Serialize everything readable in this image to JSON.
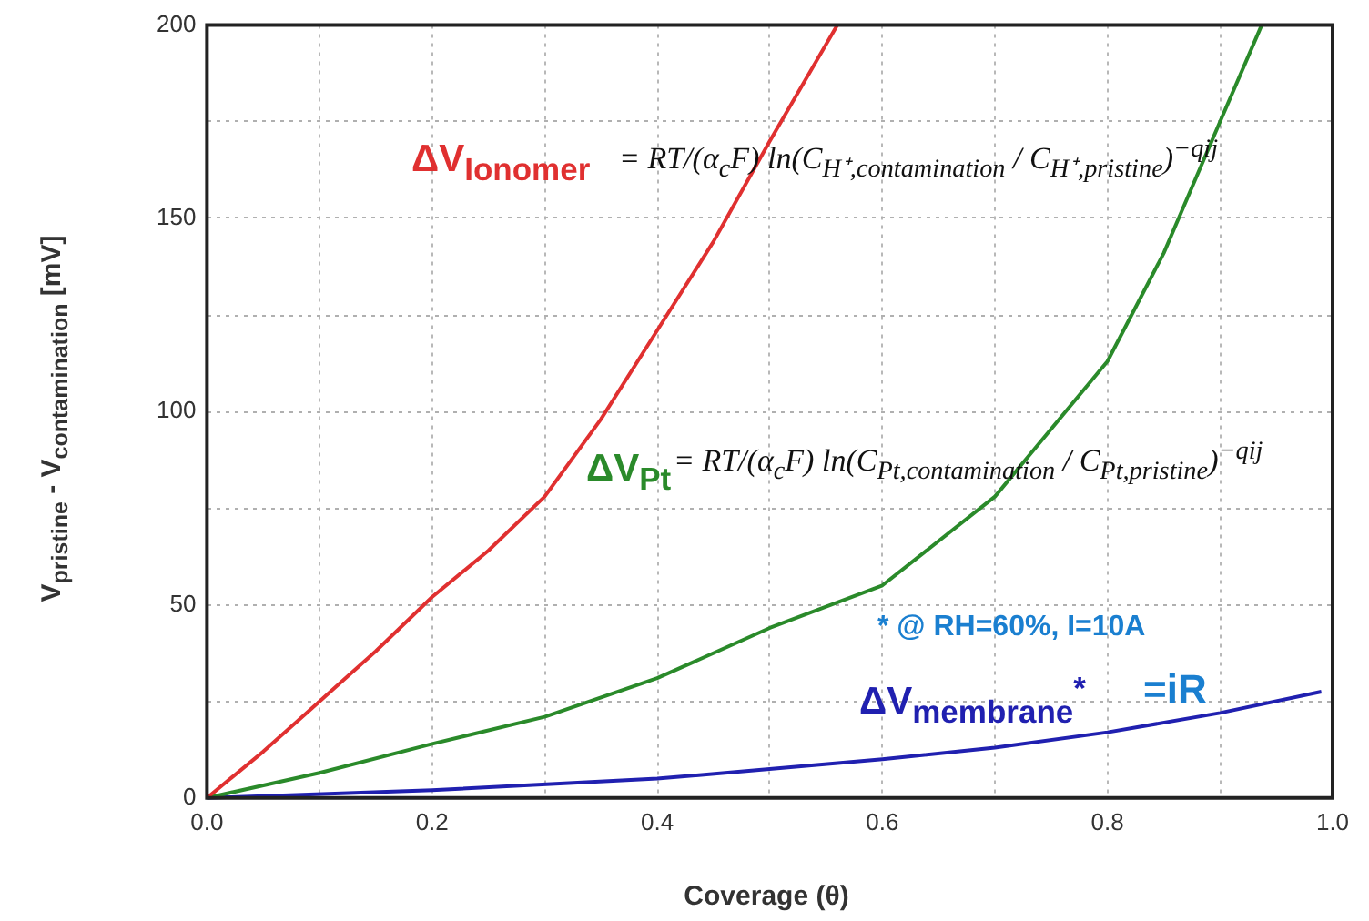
{
  "chart_data": {
    "type": "line",
    "xlabel": "Coverage (θ)",
    "ylabel": "V$_{pristine}$ - V$_{contamination}$ [mV]",
    "xlim": [
      0,
      1
    ],
    "ylim": [
      0,
      200
    ],
    "xticks": [
      {
        "value": 0,
        "label": "0.0"
      },
      {
        "value": 0.1,
        "label": null
      },
      0.2,
      {
        "value": 0.3,
        "label": null
      },
      0.4,
      {
        "value": 0.5,
        "label": null
      },
      0.6,
      {
        "value": 0.7,
        "label": null
      },
      0.8,
      {
        "value": 0.9,
        "label": null
      },
      {
        "value": 1,
        "label": "1.0"
      }
    ],
    "yticks": [
      0,
      {
        "value": 25,
        "label": null
      },
      50,
      {
        "value": 75,
        "label": null
      },
      100,
      {
        "value": 125,
        "label": null
      },
      150,
      {
        "value": 175,
        "label": null
      },
      200
    ],
    "grid": true,
    "marker": "none",
    "line_style": "solid",
    "series": [
      {
        "name": "ΔV$_{Ionomer}$",
        "color": "#e03030",
        "x": [
          0,
          0.05,
          0.1,
          0.15,
          0.2,
          0.25,
          0.3,
          0.35,
          0.4,
          0.45,
          0.5,
          0.514,
          0.56
        ],
        "values": [
          0,
          12,
          25,
          38,
          52,
          64,
          78,
          98,
          121,
          144,
          170,
          177,
          200
        ]
      },
      {
        "name": "ΔV$_{Pt}$",
        "color": "#2a8a2a",
        "x": [
          0,
          0.1,
          0.2,
          0.3,
          0.4,
          0.5,
          0.6,
          0.7,
          0.8,
          0.85,
          0.9,
          0.937
        ],
        "values": [
          0,
          6.5,
          14,
          21,
          31,
          44,
          55,
          78,
          113,
          141,
          175,
          200
        ]
      },
      {
        "name": "ΔV$_{membrane}$$^{*}$",
        "color": "#2020b0",
        "x": [
          0,
          0.2,
          0.4,
          0.6,
          0.7,
          0.8,
          0.9,
          0.99
        ],
        "values": [
          0,
          2,
          5,
          10,
          13,
          17,
          22,
          27.5
        ]
      }
    ],
    "annotations": [
      "= RT/(α$_{c}$F) ln(C$_{H⁺,contamination}$ / C$_{H⁺,pristine}$)$^{−qij}$",
      "= RT/(α$_{c}$F) ln(C$_{Pt,contamination}$ / C$_{Pt,pristine}$)$^{−qij}$",
      "* @ RH=60%, I=10A",
      "=iR"
    ]
  }
}
